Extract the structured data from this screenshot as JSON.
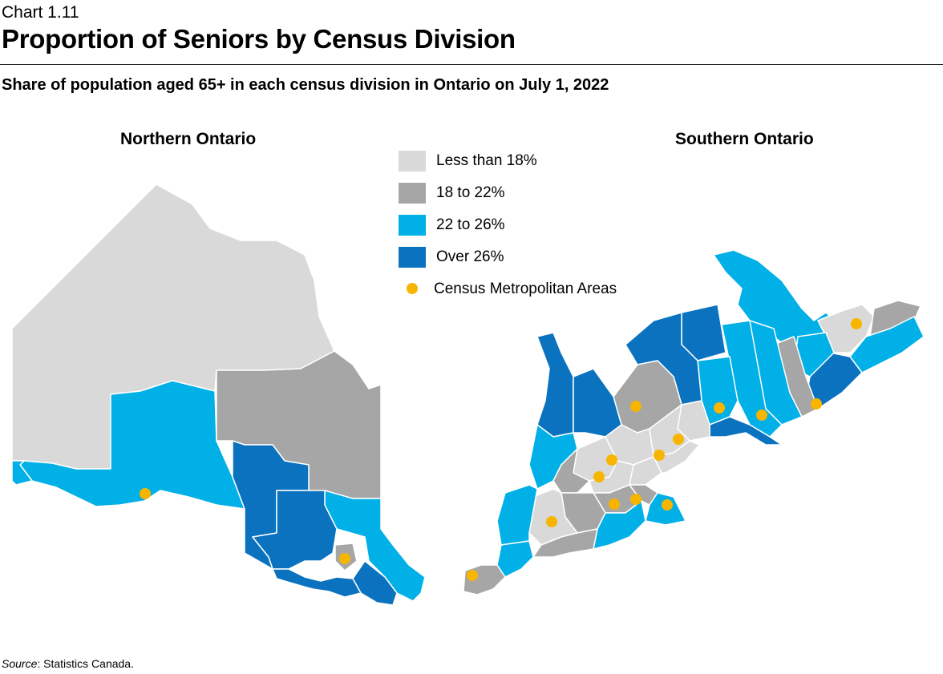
{
  "header": {
    "chart_number": "Chart 1.11",
    "title": "Proportion of Seniors by Census Division",
    "subtitle": "Share of population aged 65+ in each census division in Ontario on July 1, 2022"
  },
  "maps": {
    "north_title": "Northern Ontario",
    "south_title": "Southern Ontario"
  },
  "legend": {
    "items": [
      {
        "label": "Less than 18%",
        "color": "#d9d9d9"
      },
      {
        "label": "18 to 22%",
        "color": "#a6a6a6"
      },
      {
        "label": "22 to 26%",
        "color": "#00b0e6"
      },
      {
        "label": "Over 26%",
        "color": "#0b72bf"
      }
    ],
    "cma_label": "Census Metropolitan Areas",
    "cma_color": "#f7b500"
  },
  "source": {
    "prefix": "Source",
    "text": ": Statistics Canada."
  }
}
